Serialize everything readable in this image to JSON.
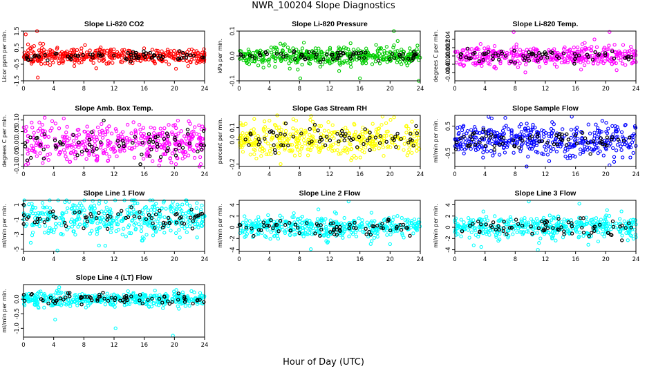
{
  "page": {
    "title": "NWR_100204  Slope Diagnostics",
    "x_axis_title": "Hour of Day (UTC)"
  },
  "chart_data": [
    {
      "type": "scatter",
      "title": "Slope Li-820 CO2",
      "ylabel": "Licor ppm per min.",
      "color": "#ff0000",
      "overlay_color": "#000000",
      "xlim": [
        0,
        24
      ],
      "xticks": [
        0,
        4,
        8,
        12,
        16,
        20,
        24
      ],
      "xtick_labels": [
        "0",
        "4",
        "8",
        "12",
        "16",
        "20",
        "24"
      ],
      "ylim": [
        -1.5,
        1.5
      ],
      "yticks": [
        -1.5,
        -0.5,
        0.5,
        1.5
      ],
      "ytick_labels": [
        "-1.5",
        "-0.5",
        "0.5",
        "1.5"
      ],
      "spread": 0.22,
      "overlay_spread": 0.12,
      "center": 0.0,
      "outliers": [
        [
          0.3,
          1.3
        ],
        [
          1.8,
          1.55
        ],
        [
          1.9,
          -1.3
        ],
        [
          0.6,
          0.7
        ],
        [
          1.4,
          0.6
        ],
        [
          2.2,
          0.75
        ]
      ]
    },
    {
      "type": "scatter",
      "title": "Slope Li-820 Pressure",
      "ylabel": "kPa per min.",
      "color": "#00cc00",
      "overlay_color": "#000000",
      "xlim": [
        0,
        24
      ],
      "xticks": [
        0,
        4,
        8,
        12,
        16,
        20,
        24
      ],
      "xtick_labels": [
        "0",
        "4",
        "8",
        "12",
        "16",
        "20",
        "24"
      ],
      "ylim": [
        -0.1,
        0.1
      ],
      "yticks": [
        -0.1,
        0.0,
        0.1
      ],
      "ytick_labels": [
        "-0.1",
        "0.0",
        "0.1"
      ],
      "spread": 0.02,
      "overlay_spread": 0.01,
      "center": 0.0,
      "outliers": [
        [
          8.1,
          -0.09
        ],
        [
          16.0,
          -0.09
        ],
        [
          20.5,
          0.1
        ],
        [
          23.8,
          -0.1
        ],
        [
          21.0,
          0.06
        ]
      ]
    },
    {
      "type": "scatter",
      "title": "Slope Li-820 Temp.",
      "ylabel": "degrees C per min.",
      "color": "#ff00ff",
      "overlay_color": "#000000",
      "xlim": [
        0,
        24
      ],
      "xticks": [
        0,
        4,
        8,
        12,
        16,
        20,
        24
      ],
      "xtick_labels": [
        "0",
        "4",
        "8",
        "12",
        "16",
        "20",
        "24"
      ],
      "ylim": [
        -0.006,
        0.006
      ],
      "yticks": [
        -0.004,
        -0.002,
        0.0,
        0.002,
        0.004
      ],
      "ytick_labels": [
        "-0.004",
        "-0.002",
        "0.000",
        "0.002",
        "0.004"
      ],
      "spread": 0.0012,
      "overlay_spread": 0.0008,
      "center": 0.0,
      "outliers": [
        [
          7.8,
          0.0058
        ],
        [
          20.5,
          0.0058
        ],
        [
          18.5,
          0.004
        ]
      ]
    },
    {
      "type": "scatter",
      "title": "Slope Amb. Box Temp.",
      "ylabel": "degrees C per min.",
      "color": "#ff00ff",
      "overlay_color": "#000000",
      "xlim": [
        0,
        24
      ],
      "xticks": [
        0,
        4,
        8,
        12,
        16,
        20,
        24
      ],
      "xtick_labels": [
        "0",
        "4",
        "8",
        "12",
        "16",
        "20",
        "24"
      ],
      "ylim": [
        -0.1,
        0.12
      ],
      "yticks": [
        -0.1,
        -0.05,
        0.0,
        0.05,
        0.1
      ],
      "ytick_labels": [
        "-0.10",
        "-0.05",
        "0.00",
        "0.05",
        "0.10"
      ],
      "spread": 0.04,
      "overlay_spread": 0.03,
      "center": 0.0,
      "outliers": [
        [
          2.8,
          0.11
        ],
        [
          3.8,
          0.095
        ],
        [
          20.2,
          -0.09
        ],
        [
          23.5,
          -0.09
        ]
      ]
    },
    {
      "type": "scatter",
      "title": "Slope Gas Stream RH",
      "ylabel": "percent per min.",
      "color": "#ffff00",
      "overlay_color": "#000000",
      "xlim": [
        0,
        24
      ],
      "xticks": [
        0,
        4,
        8,
        12,
        16,
        20,
        24
      ],
      "xtick_labels": [
        "0",
        "4",
        "8",
        "12",
        "16",
        "20",
        "24"
      ],
      "ylim": [
        -0.22,
        0.2
      ],
      "yticks": [
        -0.2,
        0.0,
        0.1
      ],
      "ytick_labels": [
        "-0.2",
        "0.0",
        "0.1"
      ],
      "spread": 0.07,
      "overlay_spread": 0.05,
      "center": 0.0,
      "outliers": [
        [
          2.0,
          0.17
        ],
        [
          5.5,
          -0.2
        ],
        [
          19.0,
          0.19
        ]
      ]
    },
    {
      "type": "scatter",
      "title": "Slope Sample Flow",
      "ylabel": "ml/min per min.",
      "color": "#0000ff",
      "overlay_color": "#000000",
      "xlim": [
        0,
        24
      ],
      "xticks": [
        0,
        4,
        8,
        12,
        16,
        20,
        24
      ],
      "xtick_labels": [
        "0",
        "4",
        "8",
        "12",
        "16",
        "20",
        "24"
      ],
      "ylim": [
        -1.0,
        0.9
      ],
      "yticks": [
        -0.5,
        0.5
      ],
      "ytick_labels": [
        "-0.5",
        "0.5"
      ],
      "spread": 0.3,
      "overlay_spread": 0.2,
      "center": 0.0,
      "outliers": [
        [
          20.5,
          -0.95
        ],
        [
          12.5,
          -0.8
        ],
        [
          15.5,
          0.85
        ]
      ]
    },
    {
      "type": "scatter",
      "title": "Slope Line 1 Flow",
      "ylabel": "ml/min per min.",
      "color": "#00ffff",
      "overlay_color": "#000000",
      "xlim": [
        0,
        24
      ],
      "xticks": [
        0,
        4,
        8,
        12,
        16,
        20,
        24
      ],
      "xtick_labels": [
        "0",
        "4",
        "8",
        "12",
        "16",
        "20",
        "24"
      ],
      "ylim": [
        -5.3,
        1.6
      ],
      "yticks": [
        -5,
        -3,
        -1,
        1
      ],
      "ytick_labels": [
        "-5",
        "-3",
        "-1",
        "1"
      ],
      "spread": 1.2,
      "overlay_spread": 0.6,
      "center": -0.8,
      "outliers": [
        [
          4.5,
          -5.2
        ],
        [
          19.8,
          1.4
        ],
        [
          10.0,
          -4.5
        ]
      ]
    },
    {
      "type": "scatter",
      "title": "Slope Line 2 Flow",
      "ylabel": "ml/min per min.",
      "color": "#00ffff",
      "overlay_color": "#000000",
      "xlim": [
        0,
        24
      ],
      "xticks": [
        0,
        4,
        8,
        12,
        16,
        20,
        24
      ],
      "xtick_labels": [
        "0",
        "4",
        "8",
        "12",
        "16",
        "20",
        "24"
      ],
      "ylim": [
        -4.3,
        4.8
      ],
      "yticks": [
        -4,
        -2,
        0,
        2,
        4
      ],
      "ytick_labels": [
        "-4",
        "-2",
        "0",
        "2",
        "4"
      ],
      "spread": 0.9,
      "overlay_spread": 0.8,
      "center": 0.0,
      "outliers": [
        [
          14.5,
          4.6
        ],
        [
          9.5,
          -3.9
        ],
        [
          10.5,
          3.2
        ],
        [
          20.0,
          -3.0
        ]
      ]
    },
    {
      "type": "scatter",
      "title": "Slope Line 3 Flow",
      "ylabel": "ml/min per min.",
      "color": "#00ffff",
      "overlay_color": "#000000",
      "xlim": [
        0,
        24
      ],
      "xticks": [
        0,
        4,
        8,
        12,
        16,
        20,
        24
      ],
      "xtick_labels": [
        "0",
        "4",
        "8",
        "12",
        "16",
        "20",
        "24"
      ],
      "ylim": [
        -4.3,
        4.8
      ],
      "yticks": [
        -4,
        -2,
        0,
        2,
        4
      ],
      "ytick_labels": [
        "-4",
        "-2",
        "0",
        "2",
        "4"
      ],
      "spread": 1.0,
      "overlay_spread": 0.9,
      "center": 0.0,
      "outliers": [
        [
          9.8,
          4.6
        ],
        [
          11.0,
          -4.0
        ],
        [
          16.5,
          4.2
        ],
        [
          3.5,
          -3.5
        ],
        [
          2.5,
          -3.2
        ]
      ]
    },
    {
      "type": "scatter",
      "title": "Slope Line 4 (LT) Flow",
      "ylabel": "ml/min per min.",
      "color": "#00ffff",
      "overlay_color": "#000000",
      "xlim": [
        0,
        24
      ],
      "xticks": [
        0,
        4,
        8,
        12,
        16,
        20,
        24
      ],
      "xtick_labels": [
        "0",
        "4",
        "8",
        "12",
        "16",
        "20",
        "24"
      ],
      "ylim": [
        -1.3,
        0.5
      ],
      "yticks": [
        -1.0,
        -0.5,
        0.0
      ],
      "ytick_labels": [
        "-1.0",
        "-0.5",
        "0.0"
      ],
      "spread": 0.12,
      "overlay_spread": 0.1,
      "center": 0.0,
      "outliers": [
        [
          4.2,
          -0.7
        ],
        [
          12.2,
          -1.0
        ],
        [
          19.8,
          -1.25
        ],
        [
          2.0,
          -0.3
        ]
      ]
    }
  ]
}
